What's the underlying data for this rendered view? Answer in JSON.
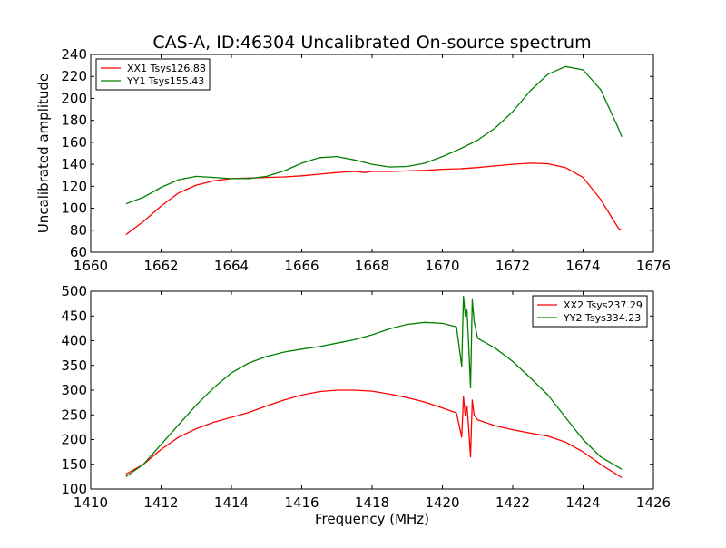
{
  "figure": {
    "title": "CAS-A, ID:46304 Uncalibrated On-source spectrum"
  },
  "chart_data": [
    {
      "type": "line",
      "title": "CAS-A, ID:46304 Uncalibrated On-source spectrum",
      "xlabel": "",
      "ylabel": "Uncalibrated amplitude",
      "xlim": [
        1660,
        1676
      ],
      "ylim": [
        60,
        240
      ],
      "xticks": [
        1660,
        1662,
        1664,
        1666,
        1668,
        1670,
        1672,
        1674,
        1676
      ],
      "yticks": [
        60,
        80,
        100,
        120,
        140,
        160,
        180,
        200,
        220,
        240
      ],
      "grid": false,
      "legend": "top-left",
      "series": [
        {
          "name": "XX1 Tsys126.88",
          "color": "#ff0000",
          "points": [
            [
              1661.0,
              76
            ],
            [
              1661.5,
              88
            ],
            [
              1662.0,
              102
            ],
            [
              1662.5,
              114
            ],
            [
              1663.0,
              121
            ],
            [
              1663.5,
              125
            ],
            [
              1664.0,
              127
            ],
            [
              1664.5,
              127.5
            ],
            [
              1665.0,
              128
            ],
            [
              1665.5,
              128.5
            ],
            [
              1666.0,
              129.5
            ],
            [
              1666.5,
              131
            ],
            [
              1667.0,
              132.5
            ],
            [
              1667.5,
              133.5
            ],
            [
              1667.8,
              132.5
            ],
            [
              1668.0,
              133.5
            ],
            [
              1668.5,
              133.5
            ],
            [
              1669.0,
              134
            ],
            [
              1669.5,
              134.5
            ],
            [
              1670.0,
              135.5
            ],
            [
              1670.5,
              136
            ],
            [
              1671.0,
              137
            ],
            [
              1671.5,
              138.5
            ],
            [
              1672.0,
              140
            ],
            [
              1672.5,
              141
            ],
            [
              1673.0,
              140.5
            ],
            [
              1673.5,
              137
            ],
            [
              1674.0,
              128
            ],
            [
              1674.5,
              108
            ],
            [
              1675.0,
              82
            ],
            [
              1675.1,
              80
            ]
          ]
        },
        {
          "name": "YY1 Tsys155.43",
          "color": "#008000",
          "points": [
            [
              1661.0,
              104
            ],
            [
              1661.5,
              110
            ],
            [
              1662.0,
              119
            ],
            [
              1662.5,
              126
            ],
            [
              1663.0,
              129
            ],
            [
              1663.5,
              128
            ],
            [
              1664.0,
              127
            ],
            [
              1664.5,
              127
            ],
            [
              1665.0,
              129
            ],
            [
              1665.5,
              134
            ],
            [
              1666.0,
              141
            ],
            [
              1666.5,
              146
            ],
            [
              1667.0,
              147
            ],
            [
              1667.5,
              144
            ],
            [
              1668.0,
              140
            ],
            [
              1668.5,
              137.5
            ],
            [
              1669.0,
              138
            ],
            [
              1669.5,
              141
            ],
            [
              1670.0,
              147
            ],
            [
              1670.5,
              154
            ],
            [
              1671.0,
              162
            ],
            [
              1671.5,
              173
            ],
            [
              1672.0,
              188
            ],
            [
              1672.5,
              207
            ],
            [
              1673.0,
              222
            ],
            [
              1673.5,
              229
            ],
            [
              1674.0,
              226
            ],
            [
              1674.5,
              208
            ],
            [
              1675.0,
              173
            ],
            [
              1675.1,
              165
            ]
          ]
        }
      ]
    },
    {
      "type": "line",
      "title": "",
      "xlabel": "Frequency (MHz)",
      "ylabel": "",
      "xlim": [
        1410,
        1426
      ],
      "ylim": [
        100,
        500
      ],
      "xticks": [
        1410,
        1412,
        1414,
        1416,
        1418,
        1420,
        1422,
        1424,
        1426
      ],
      "yticks": [
        100,
        150,
        200,
        250,
        300,
        350,
        400,
        450,
        500
      ],
      "grid": false,
      "legend": "top-right",
      "series": [
        {
          "name": "XX2 Tsys237.29",
          "color": "#ff0000",
          "points": [
            [
              1411.0,
              130
            ],
            [
              1411.5,
              150
            ],
            [
              1412.0,
              180
            ],
            [
              1412.5,
              205
            ],
            [
              1413.0,
              222
            ],
            [
              1413.5,
              235
            ],
            [
              1414.0,
              245
            ],
            [
              1414.5,
              255
            ],
            [
              1415.0,
              268
            ],
            [
              1415.5,
              280
            ],
            [
              1416.0,
              290
            ],
            [
              1416.5,
              297
            ],
            [
              1417.0,
              300
            ],
            [
              1417.5,
              300
            ],
            [
              1418.0,
              298
            ],
            [
              1418.5,
              292
            ],
            [
              1419.0,
              285
            ],
            [
              1419.5,
              276
            ],
            [
              1420.0,
              264
            ],
            [
              1420.4,
              254
            ],
            [
              1420.55,
              205
            ],
            [
              1420.6,
              287
            ],
            [
              1420.65,
              248
            ],
            [
              1420.7,
              268
            ],
            [
              1420.75,
              218
            ],
            [
              1420.8,
              165
            ],
            [
              1420.85,
              280
            ],
            [
              1420.9,
              250
            ],
            [
              1421.0,
              240
            ],
            [
              1421.5,
              228
            ],
            [
              1422.0,
              220
            ],
            [
              1422.5,
              213
            ],
            [
              1423.0,
              207
            ],
            [
              1423.5,
              195
            ],
            [
              1424.0,
              175
            ],
            [
              1424.5,
              150
            ],
            [
              1425.1,
              123
            ]
          ]
        },
        {
          "name": "YY2 Tsys334.23",
          "color": "#008000",
          "points": [
            [
              1411.0,
              125
            ],
            [
              1411.5,
              150
            ],
            [
              1412.0,
              190
            ],
            [
              1412.5,
              230
            ],
            [
              1413.0,
              270
            ],
            [
              1413.5,
              305
            ],
            [
              1414.0,
              335
            ],
            [
              1414.5,
              355
            ],
            [
              1415.0,
              368
            ],
            [
              1415.5,
              377
            ],
            [
              1416.0,
              383
            ],
            [
              1416.5,
              388
            ],
            [
              1417.0,
              395
            ],
            [
              1417.5,
              402
            ],
            [
              1418.0,
              412
            ],
            [
              1418.5,
              424
            ],
            [
              1419.0,
              433
            ],
            [
              1419.5,
              437
            ],
            [
              1420.0,
              435
            ],
            [
              1420.4,
              428
            ],
            [
              1420.55,
              348
            ],
            [
              1420.6,
              490
            ],
            [
              1420.65,
              450
            ],
            [
              1420.7,
              462
            ],
            [
              1420.75,
              385
            ],
            [
              1420.8,
              305
            ],
            [
              1420.85,
              483
            ],
            [
              1420.9,
              440
            ],
            [
              1421.0,
              405
            ],
            [
              1421.5,
              385
            ],
            [
              1422.0,
              358
            ],
            [
              1422.5,
              325
            ],
            [
              1423.0,
              290
            ],
            [
              1423.5,
              245
            ],
            [
              1424.0,
              200
            ],
            [
              1424.5,
              165
            ],
            [
              1425.1,
              140
            ]
          ]
        }
      ]
    }
  ]
}
